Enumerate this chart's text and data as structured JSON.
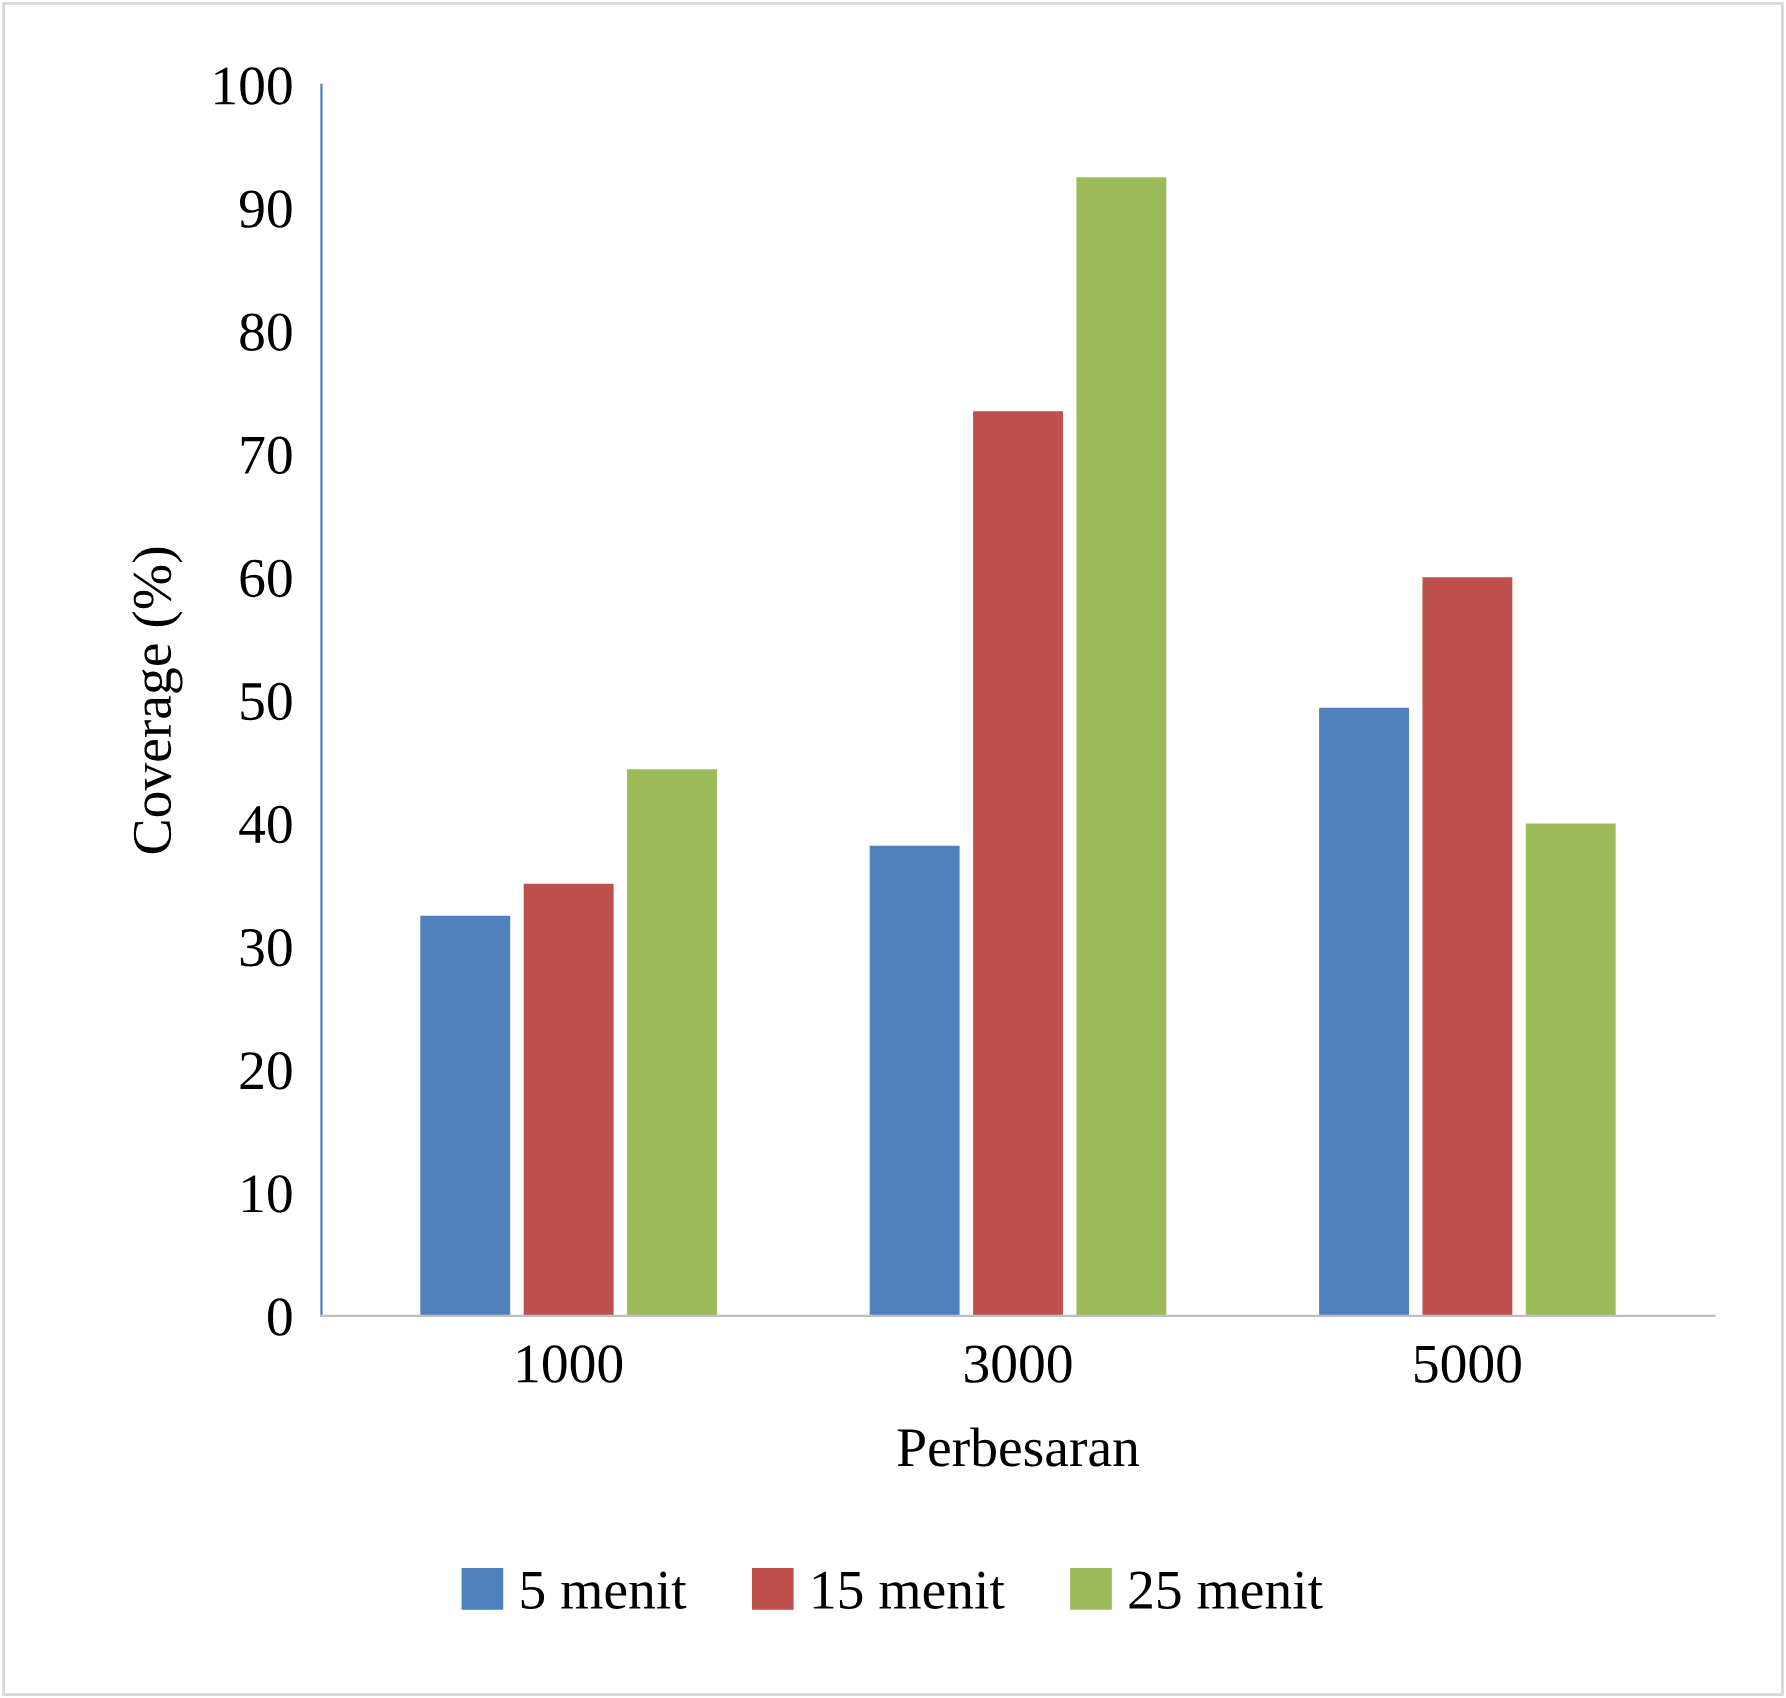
{
  "chart_data": {
    "type": "bar",
    "xlabel": "Perbesaran",
    "ylabel": "Coverage (%)",
    "categories": [
      "1000",
      "3000",
      "5000"
    ],
    "series": [
      {
        "name": "5 menit",
        "color": "#4f81bd",
        "values": [
          32.5,
          38.2,
          49.4
        ]
      },
      {
        "name": "15 menit",
        "color": "#c0504d",
        "values": [
          35.1,
          73.5,
          60.0
        ]
      },
      {
        "name": "25 menit",
        "color": "#9bbb59",
        "values": [
          44.4,
          92.5,
          40.0
        ]
      }
    ],
    "ylim": [
      0,
      100
    ],
    "yticks": [
      0,
      10,
      20,
      30,
      40,
      50,
      60,
      70,
      80,
      90,
      100
    ],
    "grid": false,
    "legend": "bottom"
  }
}
